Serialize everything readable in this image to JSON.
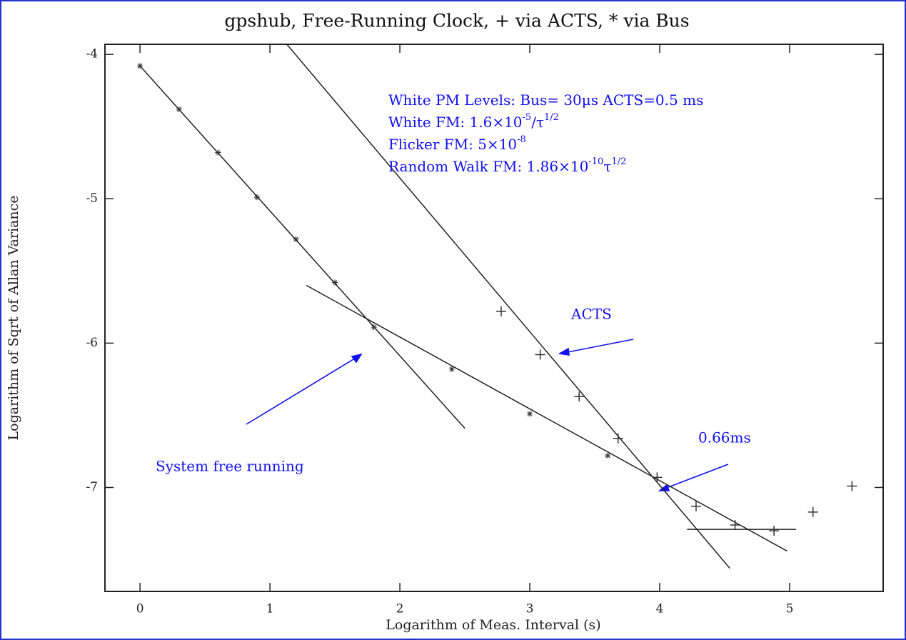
{
  "chart_data": {
    "type": "scatter",
    "title": "gpshub, Free-Running Clock, + via ACTS, * via Bus",
    "x_label": "Logarithm of Meas. Interval (s)",
    "y_label": "Logarithm of Sqrt of Allan Variance",
    "xlim": [
      -0.27,
      5.72
    ],
    "ylim": [
      -7.72,
      -3.93
    ],
    "xticks": [
      0,
      1,
      2,
      3,
      4,
      5
    ],
    "yticks": [
      -4,
      -5,
      -6,
      -7
    ],
    "series": [
      {
        "marker": "*",
        "color": "#333333",
        "x": [
          0,
          0.3,
          0.6,
          0.9,
          1.2,
          1.5,
          1.8,
          2.4,
          3.0,
          3.6
        ],
        "values": [
          -4.08,
          -4.38,
          -4.68,
          -4.99,
          -5.28,
          -5.58,
          -5.89,
          -6.18,
          -6.49,
          -6.78
        ]
      },
      {
        "marker": "+",
        "color": "#333333",
        "x": [
          2.78,
          3.08,
          3.38,
          3.68,
          3.98,
          4.28,
          4.58,
          4.88,
          5.18,
          5.48
        ],
        "values": [
          -5.78,
          -6.08,
          -6.37,
          -6.66,
          -6.93,
          -7.13,
          -7.26,
          -7.3,
          -7.17,
          -6.99
        ]
      }
    ],
    "fit_lines": [
      {
        "x": [
          0,
          2.5
        ],
        "values": [
          -4.08,
          -6.59
        ]
      },
      {
        "x": [
          1.28,
          4.98
        ],
        "values": [
          -5.6,
          -7.44
        ]
      },
      {
        "x": [
          1.13,
          4.54
        ],
        "values": [
          -3.93,
          -7.56
        ]
      },
      {
        "x": [
          4.21,
          5.05
        ],
        "values": [
          -7.29,
          -7.29
        ]
      }
    ],
    "annotation_color": "#1010ee",
    "annotation_lines": [
      [
        "White PM Levels: Bus= 30μs ACTS=0.5 ms"
      ],
      [
        "White FM: 1.6×10",
        "-5",
        "/τ",
        "1/2"
      ],
      [
        "Flicker FM: 5×10",
        "-8"
      ],
      [
        "Random Walk FM: 1.86×10",
        "-10",
        "τ",
        "1/2"
      ]
    ],
    "labels": [
      "ACTS",
      "0.66ms",
      "System free running"
    ]
  }
}
